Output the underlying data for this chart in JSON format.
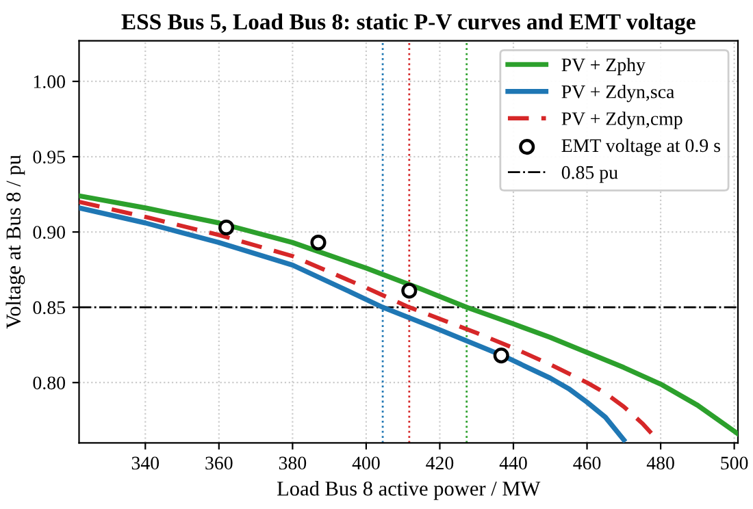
{
  "chart_data": {
    "type": "line",
    "title": "ESS Bus 5, Load Bus 8: static P-V curves and EMT voltage",
    "xlabel": "Load Bus 8 active power / MW",
    "ylabel": "Voltage at Bus 8 / pu",
    "xlim": [
      322,
      501
    ],
    "ylim": [
      0.76,
      1.027
    ],
    "xticks": [
      340,
      360,
      380,
      400,
      420,
      440,
      460,
      480,
      500
    ],
    "yticks": [
      {
        "value": 0.8,
        "label": "0.80"
      },
      {
        "value": 0.85,
        "label": "0.85"
      },
      {
        "value": 0.9,
        "label": "0.90"
      },
      {
        "value": 0.95,
        "label": "0.95"
      },
      {
        "value": 1.0,
        "label": "1.00"
      }
    ],
    "grid": true,
    "legend": "top right",
    "series": [
      {
        "name": "PV + Zphy",
        "color": "#2ca02c",
        "line_style": "solid",
        "x": [
          322,
          340,
          360,
          380,
          400,
          415,
          427.3,
          440,
          450,
          460,
          470,
          480,
          490,
          501
        ],
        "values": [
          0.924,
          0.916,
          0.906,
          0.893,
          0.876,
          0.862,
          0.85,
          0.839,
          0.83,
          0.82,
          0.81,
          0.799,
          0.785,
          0.766
        ]
      },
      {
        "name": "PV + Zdyn,sca",
        "color": "#1f77b4",
        "line_style": "solid",
        "x": [
          322,
          340,
          360,
          380,
          395,
          404.5,
          420,
          437,
          450,
          455,
          460,
          465,
          470
        ],
        "values": [
          0.916,
          0.906,
          0.893,
          0.878,
          0.861,
          0.85,
          0.835,
          0.818,
          0.803,
          0.796,
          0.787,
          0.777,
          0.762
        ]
      },
      {
        "name": "PV + Zdyn,cmp",
        "color": "#d62728",
        "line_style": "dashed",
        "x": [
          322,
          340,
          360,
          380,
          400,
          411.7,
          430,
          440,
          450,
          460,
          465,
          470,
          475,
          478
        ],
        "values": [
          0.92,
          0.91,
          0.898,
          0.884,
          0.863,
          0.85,
          0.833,
          0.823,
          0.812,
          0.8,
          0.793,
          0.784,
          0.773,
          0.765
        ]
      },
      {
        "name": "EMT voltage at 0.9 s",
        "type": "scatter",
        "color": "#000000",
        "marker": "circle",
        "x": [
          362,
          387,
          411.7,
          436.7
        ],
        "values": [
          0.903,
          0.893,
          0.861,
          0.818
        ]
      }
    ],
    "ref_lines": [
      {
        "axis": "y",
        "value": 0.85,
        "label": "0.85 pu",
        "color": "#000000",
        "line_style": "dashdot"
      },
      {
        "axis": "x",
        "value": 404.5,
        "color": "#1f77b4",
        "line_style": "dotted"
      },
      {
        "axis": "x",
        "value": 411.7,
        "color": "#d62728",
        "line_style": "dotted"
      },
      {
        "axis": "x",
        "value": 427.3,
        "color": "#2ca02c",
        "line_style": "dotted"
      }
    ]
  }
}
